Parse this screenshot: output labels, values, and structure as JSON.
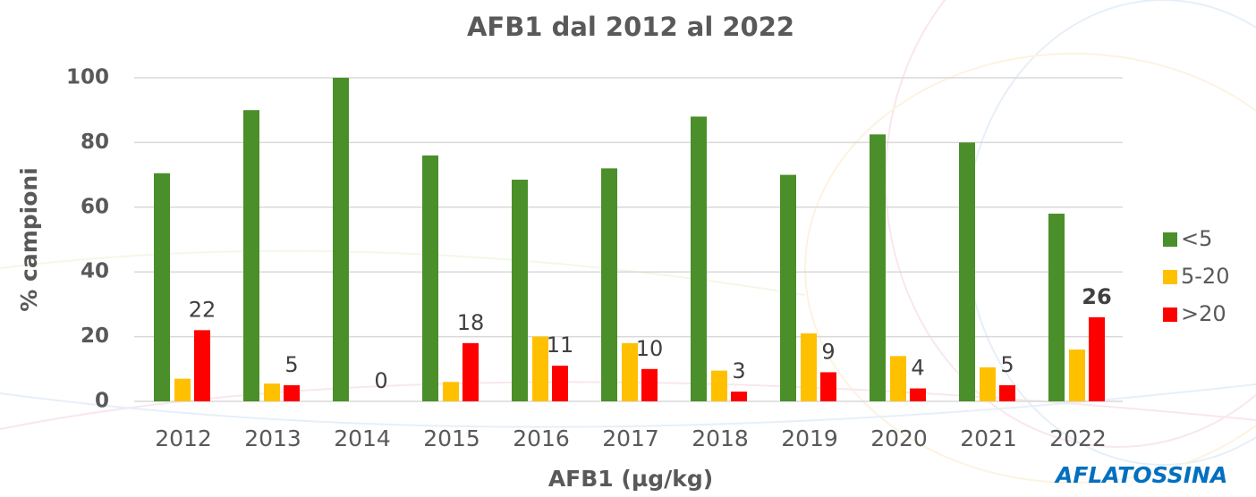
{
  "chart_data": {
    "type": "bar",
    "title": "AFB1 dal 2012 al 2022",
    "x_label": "AFB1 (µg/kg)",
    "y_label": "% campioni",
    "annotation": "AFLATOSSINA",
    "categories": [
      "2012",
      "2013",
      "2014",
      "2015",
      "2016",
      "2017",
      "2018",
      "2019",
      "2020",
      "2021",
      "2022"
    ],
    "series": [
      {
        "name": "<5",
        "color": "#4a8f29",
        "values": [
          70.5,
          90,
          100,
          76,
          68.5,
          72,
          88,
          70,
          82.5,
          80,
          58
        ]
      },
      {
        "name": "5-20",
        "color": "#ffc000",
        "values": [
          7,
          5.5,
          0,
          6,
          20,
          18,
          9.5,
          21,
          14,
          10.5,
          16
        ]
      },
      {
        "name": ">20",
        "color": "#ff0000",
        "values": [
          22,
          5,
          0,
          18,
          11,
          10,
          3,
          9,
          4,
          5,
          26
        ],
        "data_labels": true
      }
    ],
    "ylim": [
      0,
      100
    ],
    "yticks": [
      0,
      20,
      40,
      60,
      80,
      100
    ],
    "grid": true,
    "legend": "right"
  }
}
